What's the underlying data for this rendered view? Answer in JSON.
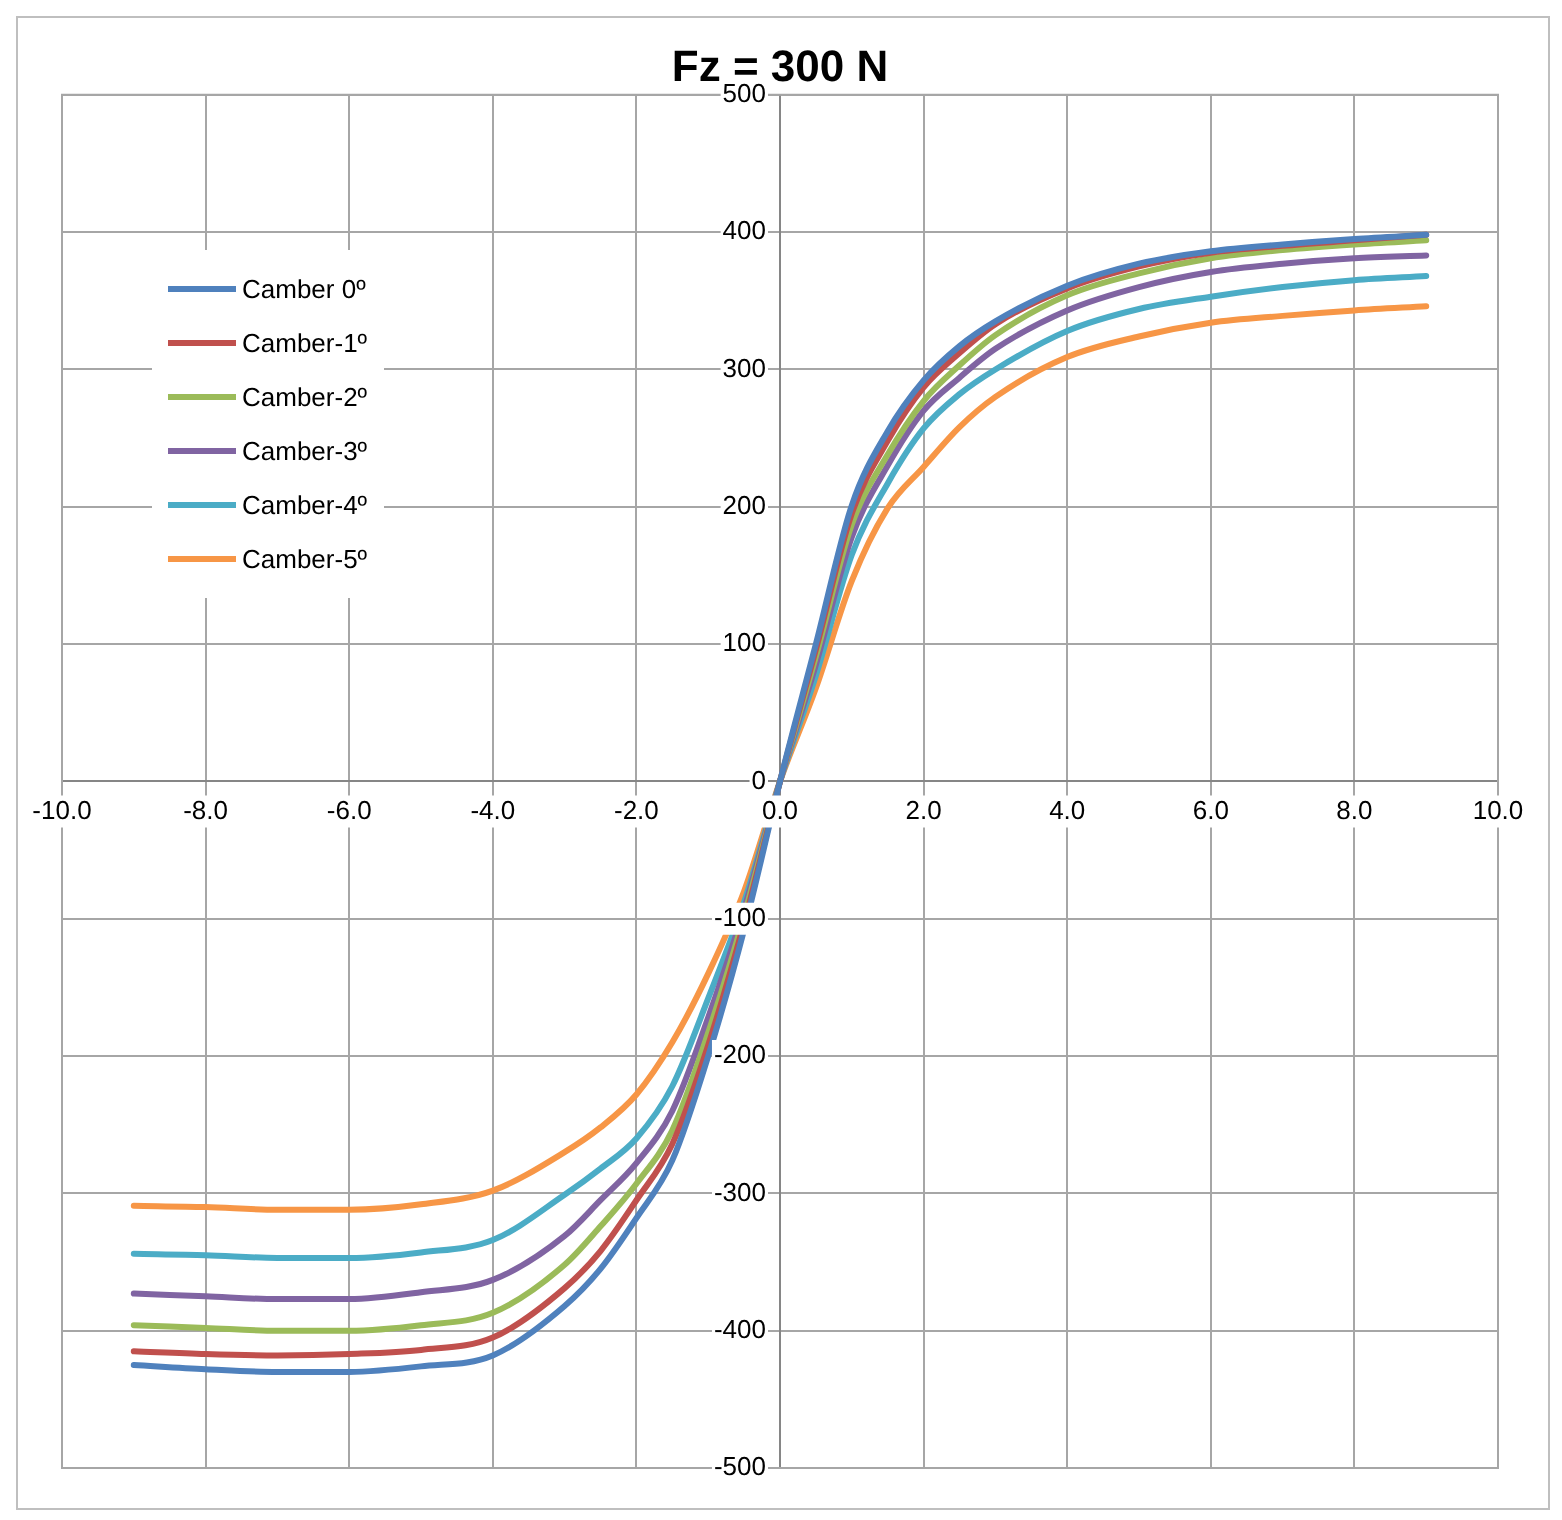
{
  "chart_data": {
    "type": "line",
    "title": "Fz = 300 N",
    "x": [
      -9,
      -8,
      -7,
      -6,
      -5,
      -4,
      -3,
      -2.5,
      -2,
      -1.5,
      -1,
      -0.5,
      0,
      0.5,
      1,
      1.5,
      2,
      2.5,
      3,
      4,
      5,
      6,
      7,
      8,
      9
    ],
    "series": [
      {
        "name": "Camber 0º",
        "color": "#4f81bd",
        "values": [
          -425,
          -428,
          -430,
          -430,
          -426,
          -418,
          -382,
          -355,
          -318,
          -276,
          -200,
          -108,
          0,
          100,
          201,
          255,
          292,
          317,
          335,
          361,
          377,
          386,
          391,
          395,
          398
        ]
      },
      {
        "name": "Camber-1º",
        "color": "#c0504d",
        "values": [
          -415,
          -417,
          -418,
          -417,
          -414,
          -405,
          -369,
          -342,
          -305,
          -264,
          -192,
          -103,
          0,
          96,
          195,
          248,
          287,
          312,
          333,
          359,
          375,
          385,
          390,
          394,
          398
        ]
      },
      {
        "name": "Camber-2º",
        "color": "#9bbb59",
        "values": [
          -396,
          -398,
          -400,
          -400,
          -396,
          -387,
          -352,
          -324,
          -293,
          -254,
          -183,
          -98,
          0,
          91,
          187,
          238,
          277,
          303,
          325,
          354,
          370,
          381,
          387,
          391,
          394
        ]
      },
      {
        "name": "Camber-3º",
        "color": "#8064a2",
        "values": [
          -373,
          -375,
          -377,
          -377,
          -372,
          -363,
          -331,
          -305,
          -278,
          -240,
          -172,
          -93,
          0,
          85,
          178,
          230,
          270,
          294,
          315,
          343,
          360,
          371,
          377,
          381,
          383
        ]
      },
      {
        "name": "Camber-4º",
        "color": "#4bacc6",
        "values": [
          -344,
          -345,
          -347,
          -347,
          -343,
          -334,
          -301,
          -282,
          -260,
          -222,
          -158,
          -88,
          0,
          77,
          165,
          217,
          257,
          282,
          300,
          328,
          344,
          353,
          360,
          365,
          368
        ]
      },
      {
        "name": "Camber-5º",
        "color": "#f79646",
        "values": [
          -309,
          -310,
          -312,
          -312,
          -308,
          -298,
          -270,
          -252,
          -228,
          -190,
          -140,
          -80,
          0,
          68,
          146,
          199,
          229,
          258,
          280,
          309,
          324,
          334,
          339,
          343,
          346
        ]
      }
    ],
    "xlim": [
      -10,
      10
    ],
    "xticks": [
      {
        "value": -10,
        "label": "-10.0"
      },
      {
        "value": -8,
        "label": "-8.0"
      },
      {
        "value": -6,
        "label": "-6.0"
      },
      {
        "value": -4,
        "label": "-4.0"
      },
      {
        "value": -2,
        "label": "-2.0"
      },
      {
        "value": 0,
        "label": "0.0"
      },
      {
        "value": 2,
        "label": "2.0"
      },
      {
        "value": 4,
        "label": "4.0"
      },
      {
        "value": 6,
        "label": "6.0"
      },
      {
        "value": 8,
        "label": "8.0"
      },
      {
        "value": 10,
        "label": "10.0"
      }
    ],
    "ylim": [
      -500,
      500
    ],
    "yticks": [
      -500,
      -400,
      -300,
      -200,
      -100,
      0,
      100,
      200,
      300,
      400,
      500
    ],
    "grid": true,
    "legend": "top left",
    "marker": "none",
    "line_style": "solid"
  }
}
